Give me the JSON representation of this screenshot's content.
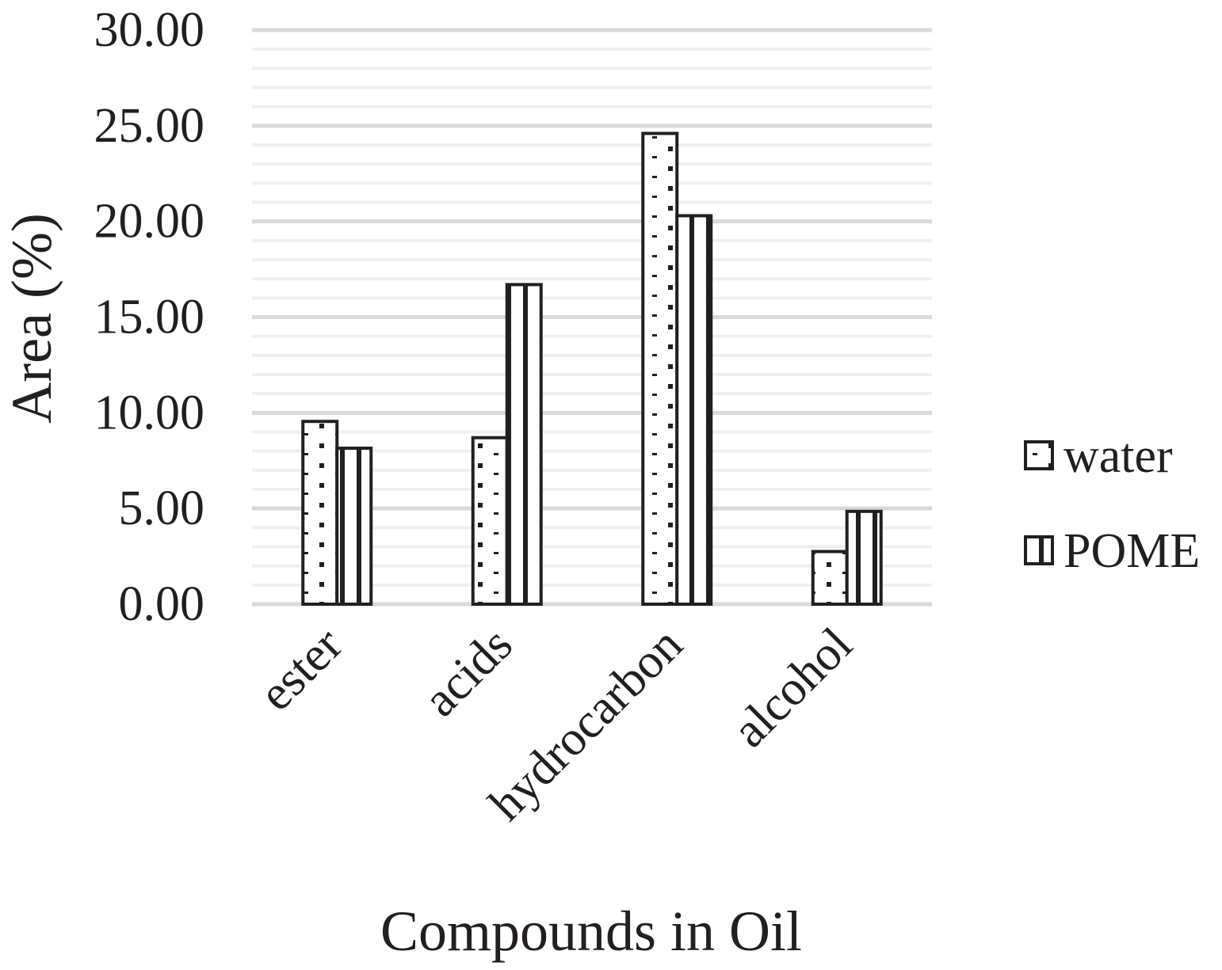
{
  "chart_data": {
    "type": "bar",
    "categories": [
      "ester",
      "acids",
      "hydrocarbon",
      "alcohol"
    ],
    "series": [
      {
        "name": "water",
        "values": [
          9.55,
          8.7,
          24.6,
          2.75
        ],
        "pattern": "dots"
      },
      {
        "name": "POME",
        "values": [
          8.15,
          16.7,
          20.3,
          4.85
        ],
        "pattern": "vertical-lines"
      }
    ],
    "yticks": [
      "0.00",
      "5.00",
      "10.00",
      "15.00",
      "20.00",
      "25.00",
      "30.00"
    ],
    "ylim": [
      0,
      30
    ],
    "xlabel": "Compounds in Oil",
    "ylabel": "Area (%)",
    "legend_position": "right",
    "grid": true,
    "colors": {
      "bar_outline": "#231f20",
      "bar_fill": "#ffffff",
      "grid_major": "#d9d9d9",
      "grid_minor": "#efefef",
      "text": "#231f20"
    }
  }
}
